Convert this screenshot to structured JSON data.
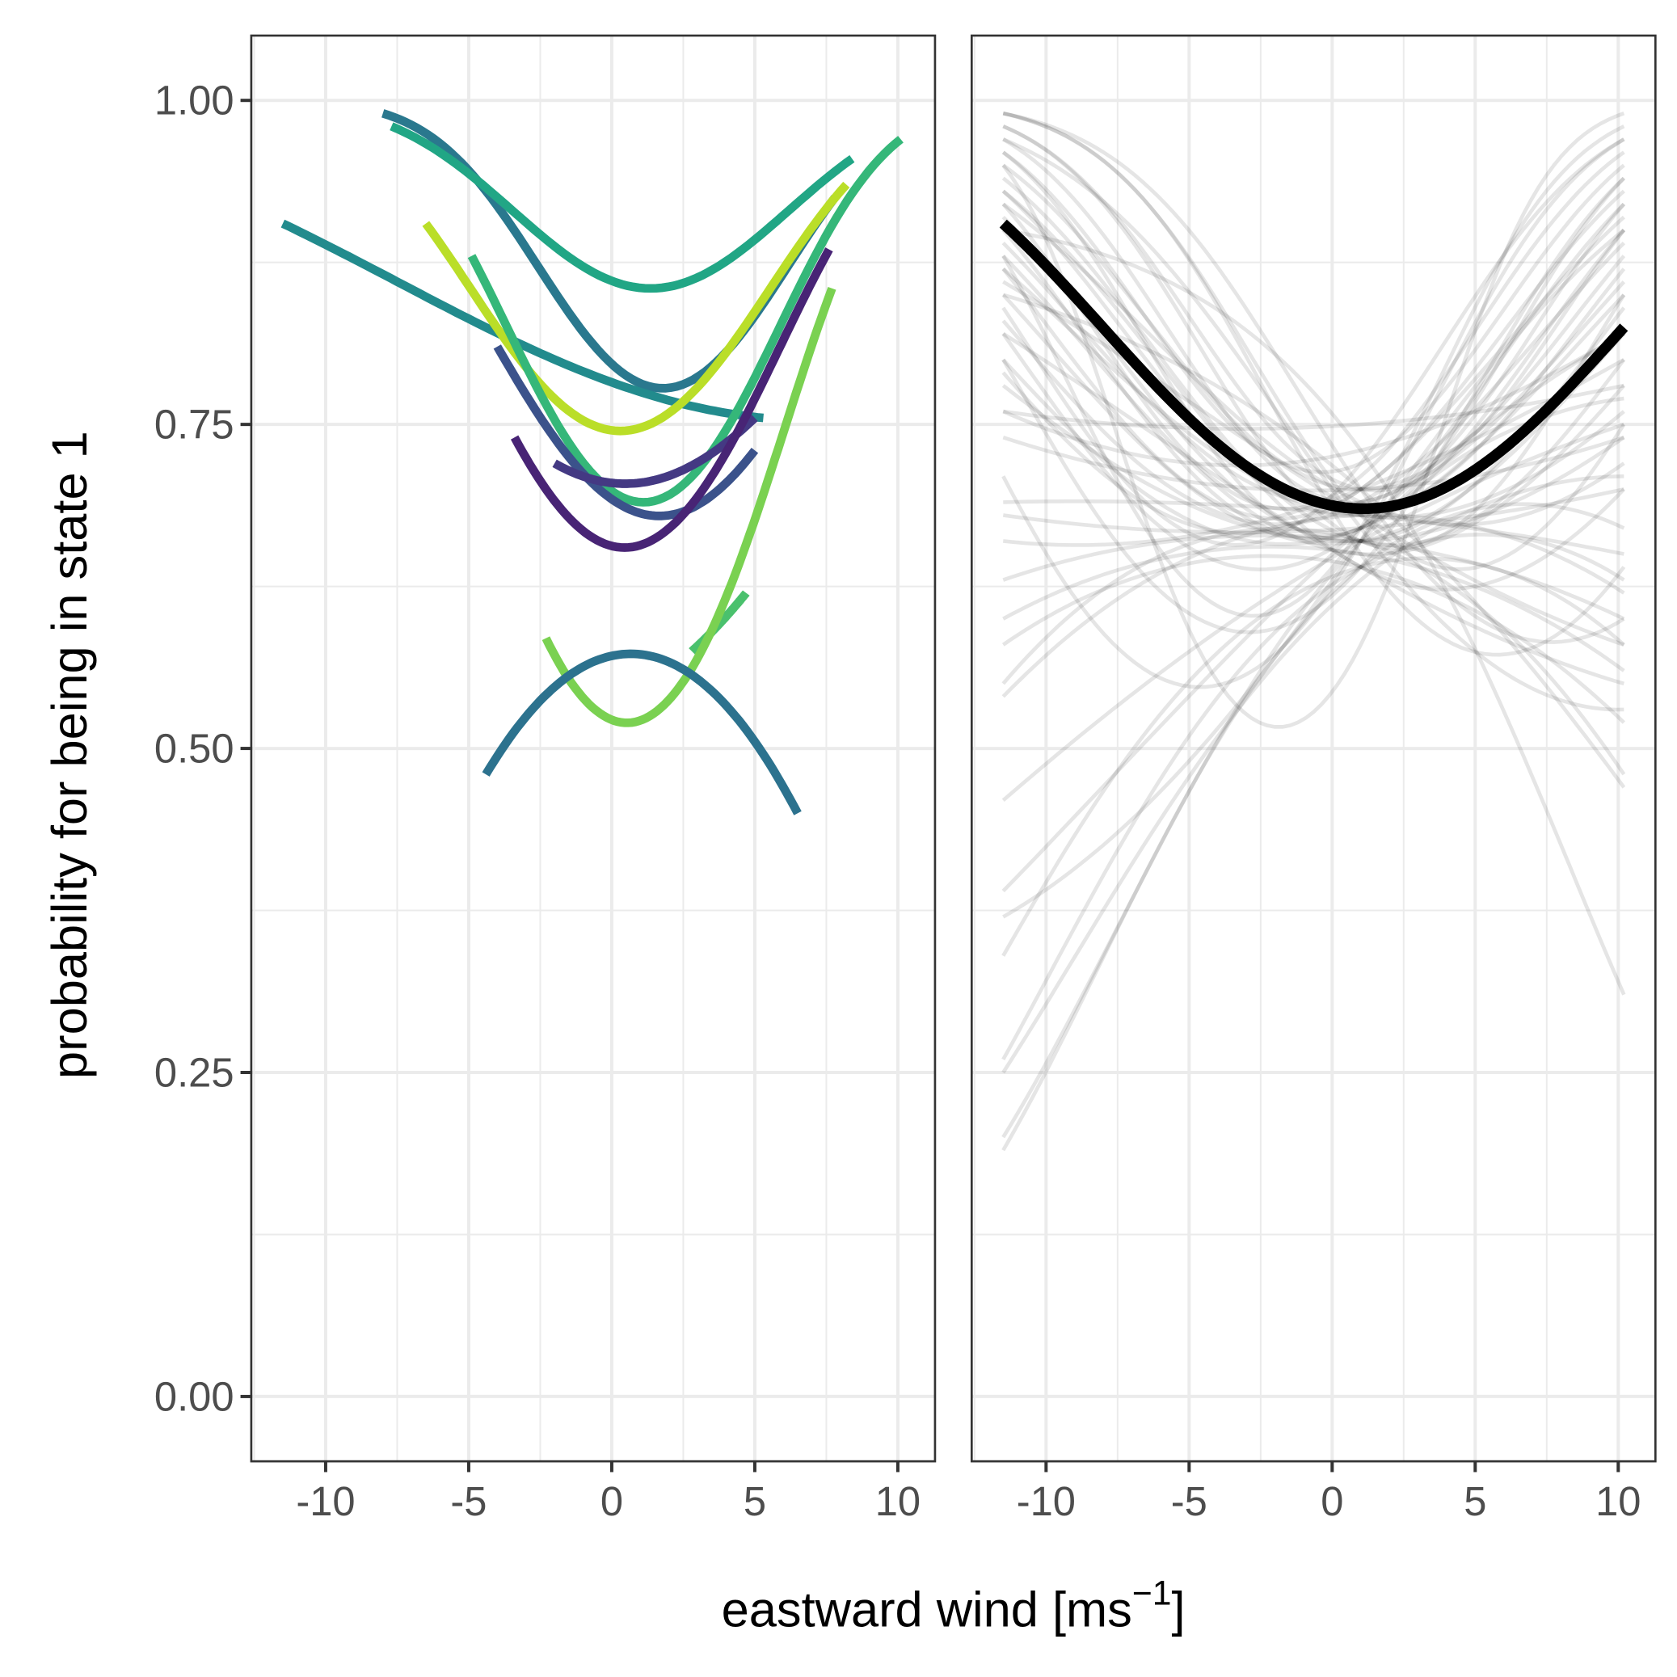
{
  "chart_data": [
    {
      "type": "line",
      "panel": "left",
      "xlabel": "eastward wind [ms",
      "xlabel_superscript": "−1",
      "xlabel_close": "]",
      "ylabel": "probability for being in state 1",
      "xlim": [
        -12.6,
        11.3
      ],
      "ylim": [
        -0.05,
        1.05
      ],
      "x_ticks": [
        "-10",
        "-5",
        "0",
        "5",
        "10"
      ],
      "x_tick_values": [
        -10,
        -5,
        0,
        5,
        10
      ],
      "y_ticks": [
        "0.00",
        "0.25",
        "0.50",
        "0.75",
        "1.00"
      ],
      "y_tick_values": [
        0,
        0.25,
        0.5,
        0.75,
        1
      ],
      "grid": true,
      "series": [
        {
          "color": "#2a788e",
          "points": [
            [
              -8.0,
              0.99
            ],
            [
              1.2,
              0.78
            ],
            [
              7.8,
              0.925
            ]
          ]
        },
        {
          "color": "#21a685",
          "points": [
            [
              -7.7,
              0.98
            ],
            [
              1.2,
              0.855
            ],
            [
              8.4,
              0.955
            ]
          ]
        },
        {
          "color": "#228b8d",
          "points": [
            [
              -11.5,
              0.905
            ],
            [
              -3,
              0.81
            ],
            [
              5.3,
              0.755
            ]
          ]
        },
        {
          "color": "#bade28",
          "points": [
            [
              -6.5,
              0.905
            ],
            [
              0.3,
              0.745
            ],
            [
              8.2,
              0.935
            ]
          ]
        },
        {
          "color": "#35b779",
          "points": [
            [
              -4.9,
              0.88
            ],
            [
              1.0,
              0.69
            ],
            [
              10.1,
              0.97
            ]
          ]
        },
        {
          "color": "#3b528b",
          "points": [
            [
              -4.0,
              0.81
            ],
            [
              1.3,
              0.68
            ],
            [
              5.0,
              0.73
            ]
          ]
        },
        {
          "color": "#443983",
          "points": [
            [
              -2.0,
              0.72
            ],
            [
              1.0,
              0.705
            ],
            [
              5.0,
              0.755
            ]
          ]
        },
        {
          "color": "#482475",
          "points": [
            [
              -3.4,
              0.74
            ],
            [
              0.4,
              0.655
            ],
            [
              7.6,
              0.885
            ]
          ]
        },
        {
          "color": "#4ac16d",
          "points": [
            [
              2.8,
              0.575
            ],
            [
              3.8,
              0.597
            ],
            [
              4.7,
              0.62
            ]
          ]
        },
        {
          "color": "#7ad151",
          "points": [
            [
              -2.3,
              0.585
            ],
            [
              0.7,
              0.52
            ],
            [
              7.7,
              0.855
            ]
          ]
        },
        {
          "color": "#2c728e",
          "points": [
            [
              -4.4,
              0.48
            ],
            [
              0.6,
              0.573
            ],
            [
              6.5,
              0.45
            ]
          ]
        }
      ]
    },
    {
      "type": "line",
      "panel": "right",
      "xlim": [
        -12.6,
        11.3
      ],
      "ylim": [
        -0.05,
        1.05
      ],
      "x_ticks": [
        "-10",
        "-5",
        "0",
        "5",
        "10"
      ],
      "x_tick_values": [
        -10,
        -5,
        0,
        5,
        10
      ],
      "grid": true,
      "sample_x": [
        -11.5,
        1.0,
        10.2
      ],
      "samples_color": "#000000",
      "samples_opacity": 0.1,
      "samples": [
        [
          0.99,
          0.7,
          0.6
        ],
        [
          0.99,
          0.68,
          0.75
        ],
        [
          0.98,
          0.66,
          0.85
        ],
        [
          0.97,
          0.69,
          0.92
        ],
        [
          0.96,
          0.72,
          0.95
        ],
        [
          0.95,
          0.7,
          0.88
        ],
        [
          0.94,
          0.66,
          0.8
        ],
        [
          0.93,
          0.64,
          0.7
        ],
        [
          0.92,
          0.71,
          0.96
        ],
        [
          0.9,
          0.67,
          0.9
        ],
        [
          0.89,
          0.69,
          0.86
        ],
        [
          0.88,
          0.65,
          0.78
        ],
        [
          0.87,
          0.7,
          0.93
        ],
        [
          0.86,
          0.68,
          0.58
        ],
        [
          0.85,
          0.66,
          0.82
        ],
        [
          0.84,
          0.72,
          0.97
        ],
        [
          0.83,
          0.69,
          0.89
        ],
        [
          0.82,
          0.64,
          0.55
        ],
        [
          0.8,
          0.67,
          0.85
        ],
        [
          0.79,
          0.7,
          0.91
        ],
        [
          0.78,
          0.66,
          0.74
        ],
        [
          0.76,
          0.75,
          0.78
        ],
        [
          0.76,
          0.73,
          0.82
        ],
        [
          0.74,
          0.7,
          0.74
        ],
        [
          0.69,
          0.68,
          0.65
        ],
        [
          0.68,
          0.67,
          0.7
        ],
        [
          0.66,
          0.7,
          0.8
        ],
        [
          0.63,
          0.66,
          0.6
        ],
        [
          0.6,
          0.65,
          0.56
        ],
        [
          0.58,
          0.64,
          0.52
        ],
        [
          0.55,
          0.66,
          0.48
        ],
        [
          0.54,
          0.68,
          0.62
        ],
        [
          0.46,
          0.66,
          0.75
        ],
        [
          0.39,
          0.67,
          0.82
        ],
        [
          0.37,
          0.66,
          0.9
        ],
        [
          0.34,
          0.64,
          0.58
        ],
        [
          0.26,
          0.64,
          0.63
        ],
        [
          0.25,
          0.63,
          0.71
        ],
        [
          0.2,
          0.66,
          0.77
        ],
        [
          0.19,
          0.64,
          0.67
        ],
        [
          0.95,
          0.58,
          0.99
        ],
        [
          0.9,
          0.73,
          0.31
        ],
        [
          0.85,
          0.7,
          0.47
        ],
        [
          0.97,
          0.67,
          0.53
        ],
        [
          0.99,
          0.65,
          0.64
        ],
        [
          0.92,
          0.69,
          0.72
        ],
        [
          0.8,
          0.64,
          0.94
        ],
        [
          0.88,
          0.67,
          0.98
        ],
        [
          0.93,
          0.68,
          0.87
        ],
        [
          0.71,
          0.66,
          0.97
        ],
        [
          0.98,
          0.7,
          0.9
        ],
        [
          0.96,
          0.67,
          0.94
        ],
        [
          0.91,
          0.66,
          0.84
        ],
        [
          0.87,
          0.68,
          0.76
        ],
        [
          0.82,
          0.67,
          0.92
        ]
      ],
      "mean": {
        "color": "#000000",
        "points": [
          [
            -11.5,
            0.905
          ],
          [
            1.0,
            0.685
          ],
          [
            10.2,
            0.825
          ]
        ]
      }
    }
  ]
}
